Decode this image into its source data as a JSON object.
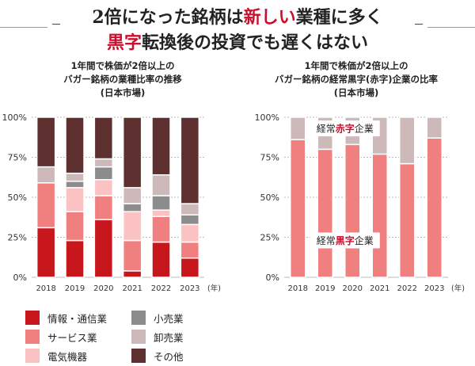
{
  "headline": {
    "line1": [
      "2倍になった銘柄は",
      "新しい",
      "業種に多く"
    ],
    "line2": [
      "黒字",
      "転換後の投資でも遅くはない"
    ]
  },
  "colors": {
    "info": "#c8161d",
    "service": "#f08080",
    "elec": "#fbc2c4",
    "retail": "#8c8c8c",
    "wholesale": "#cdb9b9",
    "other": "#5e3030",
    "black_profit": "#f08080",
    "red_loss": "#cdb9b9",
    "accent_red": "#c8102e"
  },
  "legend": {
    "items": [
      {
        "key": "info",
        "label": "情報・通信業"
      },
      {
        "key": "service",
        "label": "サービス業"
      },
      {
        "key": "elec",
        "label": "電気機器"
      },
      {
        "key": "retail",
        "label": "小売業"
      },
      {
        "key": "wholesale",
        "label": "卸売業"
      },
      {
        "key": "other",
        "label": "その他"
      }
    ]
  },
  "chart_data": [
    {
      "type": "bar",
      "stacked": true,
      "title": [
        "1年間で株価が2倍以上の",
        "バガー銘柄の業種比率の推移",
        "(日本市場)"
      ],
      "categories": [
        "2018",
        "2019",
        "2020",
        "2021",
        "2022",
        "2023"
      ],
      "x_unit": "(年)",
      "ylim": [
        0,
        100
      ],
      "yticks": [
        "0%",
        "25%",
        "50%",
        "75%",
        "100%"
      ],
      "series": [
        {
          "name": "情報・通信業",
          "key": "info",
          "values": [
            31,
            23,
            36,
            4,
            22,
            12
          ]
        },
        {
          "name": "サービス業",
          "key": "service",
          "values": [
            28,
            18,
            15,
            19,
            16,
            10
          ]
        },
        {
          "name": "電気機器",
          "key": "elec",
          "values": [
            0,
            15,
            10,
            18,
            4,
            11
          ]
        },
        {
          "name": "小売業",
          "key": "retail",
          "values": [
            0,
            4,
            8,
            5,
            9,
            6
          ]
        },
        {
          "name": "卸売業",
          "key": "wholesale",
          "values": [
            10,
            5,
            5,
            10,
            13,
            7
          ]
        },
        {
          "name": "その他",
          "key": "other",
          "values": [
            31,
            35,
            26,
            44,
            36,
            54
          ]
        }
      ]
    },
    {
      "type": "bar",
      "stacked": true,
      "title": [
        "1年間で株価が2倍以上の",
        "バガー銘柄の経常黒字(赤字)企業の比率",
        "(日本市場)"
      ],
      "categories": [
        "2018",
        "2019",
        "2020",
        "2021",
        "2022",
        "2023"
      ],
      "x_unit": "(年)",
      "ylim": [
        0,
        100
      ],
      "yticks": [
        "0%",
        "25%",
        "50%",
        "75%",
        "100%"
      ],
      "series": [
        {
          "key": "black_profit",
          "values": [
            86,
            80,
            83,
            77,
            71,
            87
          ]
        },
        {
          "key": "red_loss",
          "values": [
            14,
            20,
            17,
            23,
            29,
            13
          ]
        }
      ],
      "annotations": [
        {
          "parts": [
            "経常",
            "赤字",
            "企業"
          ],
          "accent": 1,
          "at_category": "2019",
          "at_value": 93
        },
        {
          "parts": [
            "経常",
            "黒字",
            "企業"
          ],
          "accent": 1,
          "at_category": "2019",
          "at_value": 23
        }
      ]
    }
  ]
}
